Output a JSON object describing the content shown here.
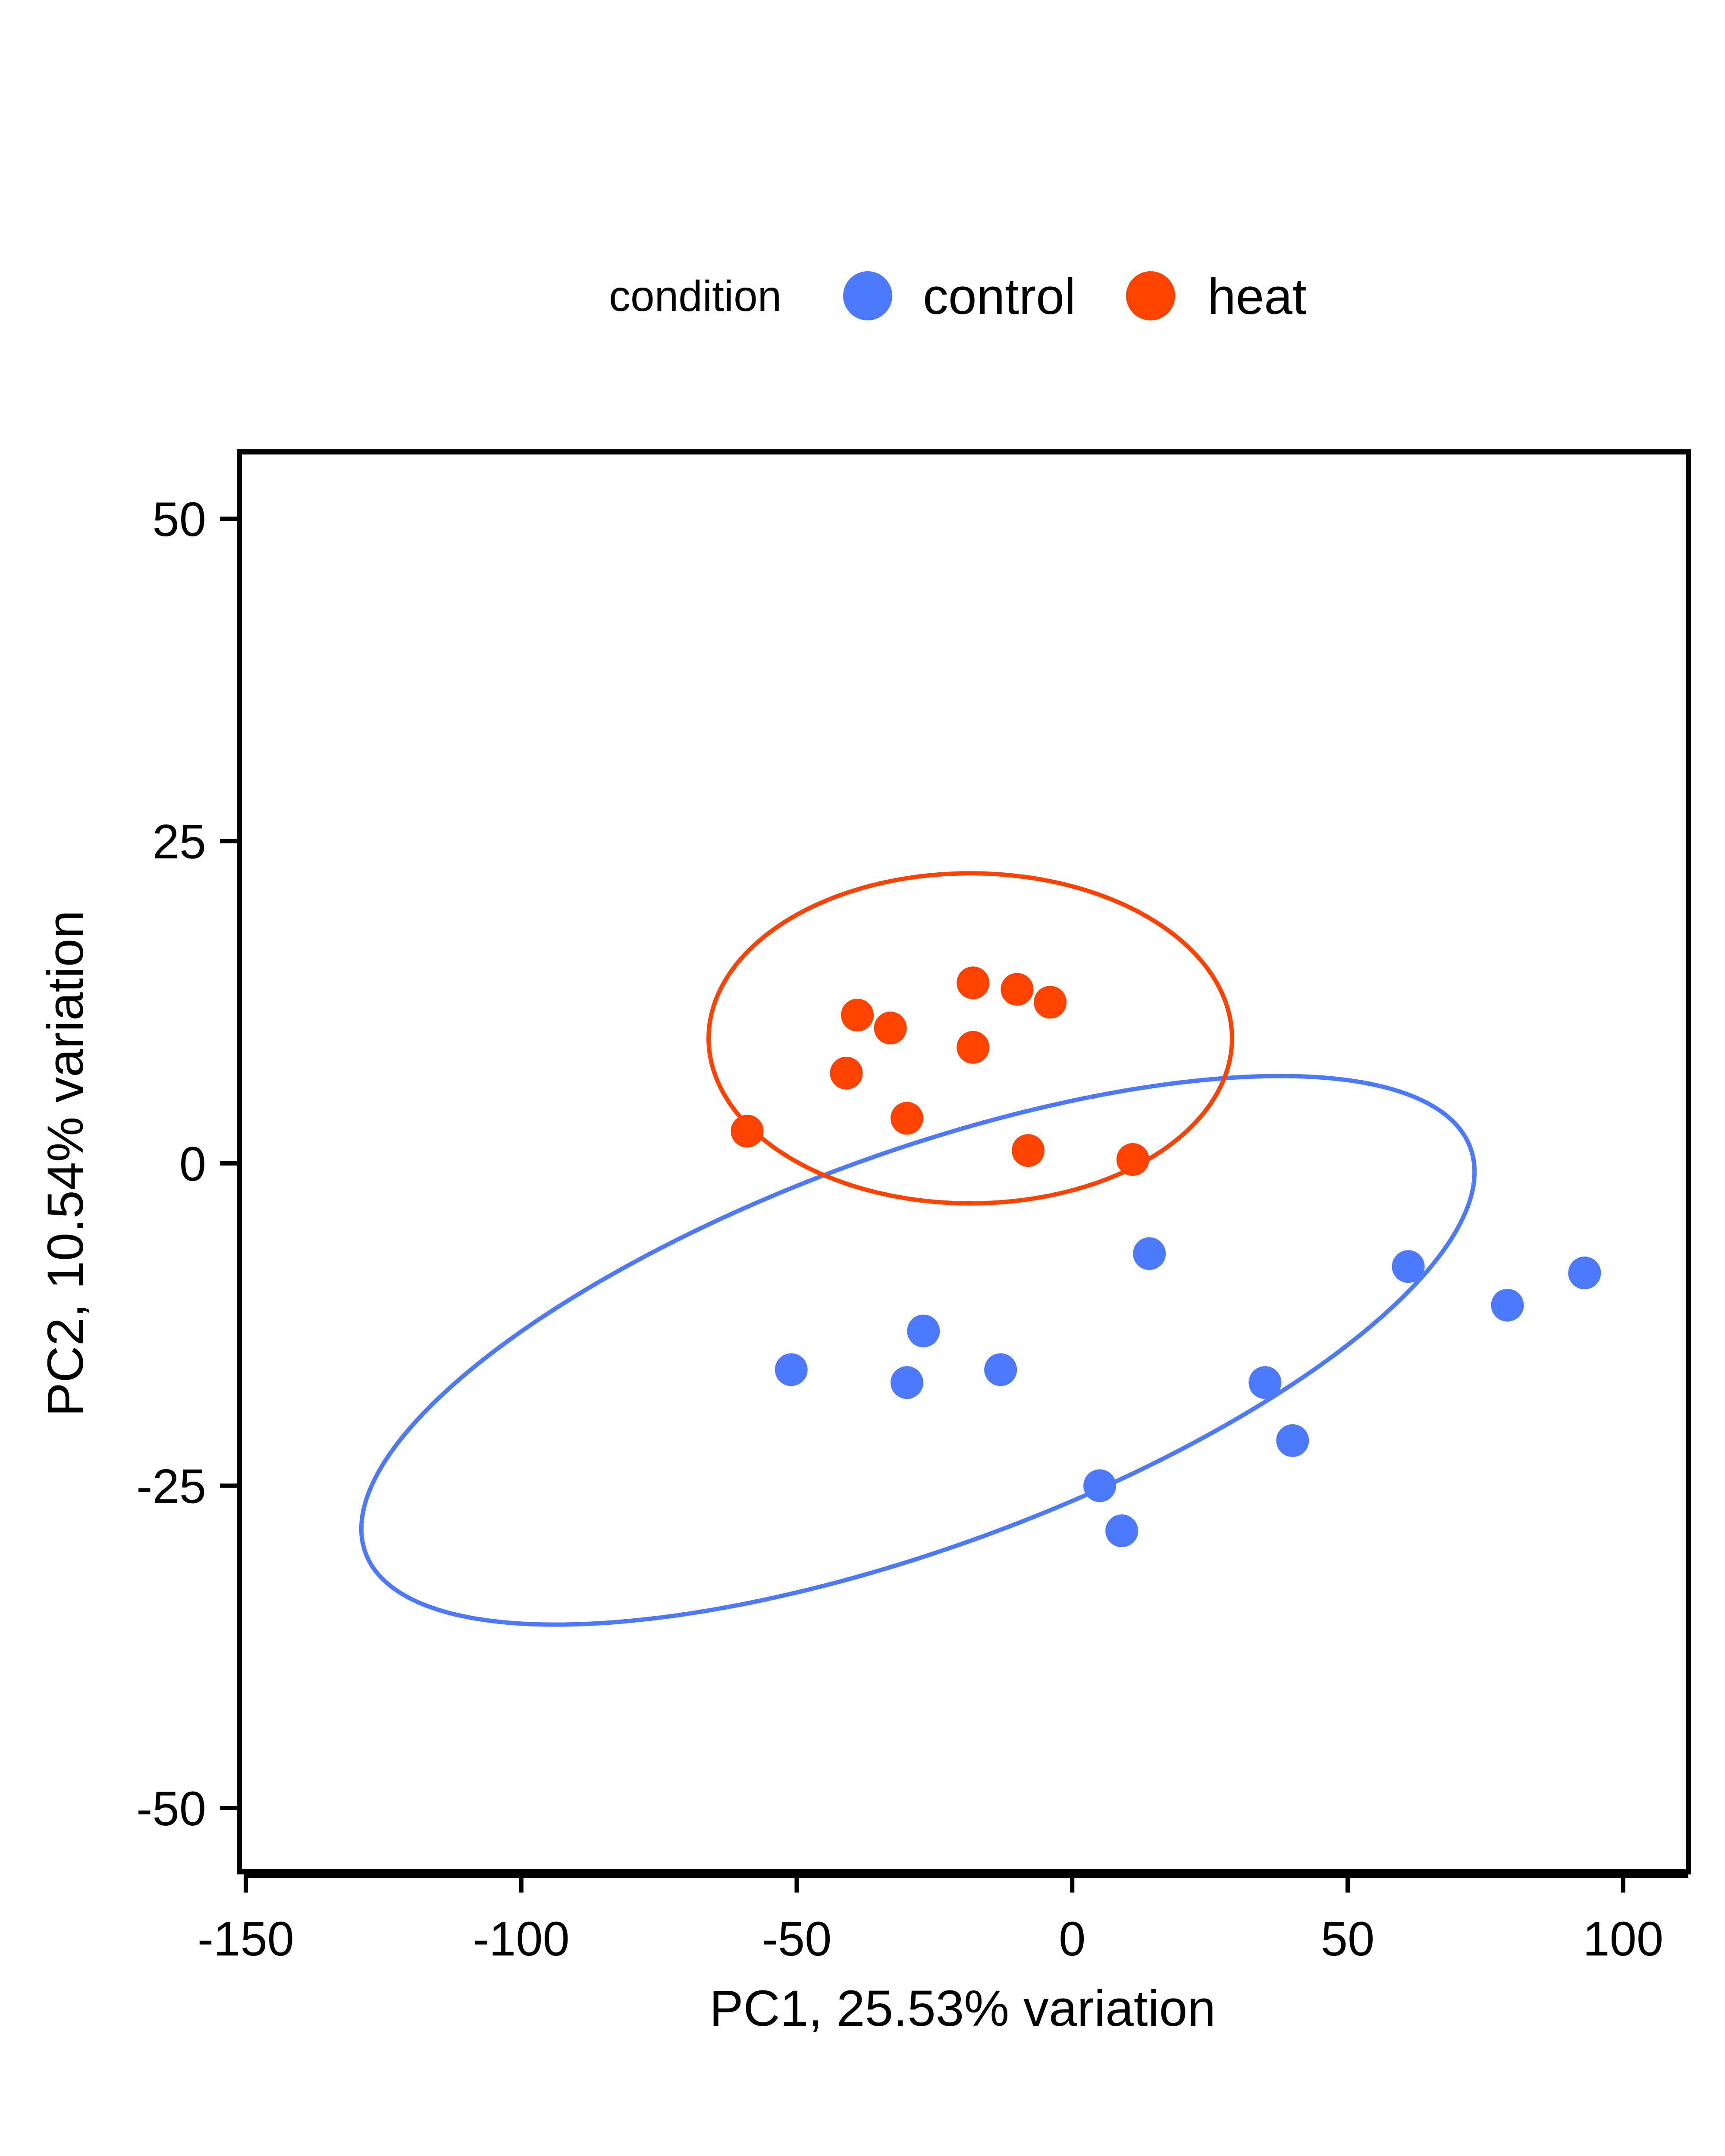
{
  "chart_data": {
    "type": "scatter",
    "title": "",
    "xlabel": "PC1, 25.53% variation",
    "ylabel": "PC2, 10.54% variation",
    "xlim": [
      -151,
      112
    ],
    "ylim": [
      -55,
      55
    ],
    "xticks": [
      -150,
      -100,
      -50,
      0,
      50,
      100
    ],
    "yticks": [
      50,
      25,
      0,
      -25,
      -50
    ],
    "grid": false,
    "legend": {
      "title": "condition",
      "position": "top",
      "entries": [
        {
          "name": "control",
          "color": "#4d79ff"
        },
        {
          "name": "heat",
          "color": "#ff4200"
        }
      ]
    },
    "series": [
      {
        "name": "control",
        "color": "#4d79ff",
        "points": [
          {
            "x": -51,
            "y": -16
          },
          {
            "x": -30,
            "y": -17
          },
          {
            "x": -27,
            "y": -13
          },
          {
            "x": -13,
            "y": -16
          },
          {
            "x": 5,
            "y": -25
          },
          {
            "x": 9,
            "y": -28.5
          },
          {
            "x": 14,
            "y": -7
          },
          {
            "x": 35,
            "y": -17
          },
          {
            "x": 40,
            "y": -21.5
          },
          {
            "x": 61,
            "y": -8
          },
          {
            "x": 79,
            "y": -11
          },
          {
            "x": 93,
            "y": -8.5
          }
        ],
        "ellipse": {
          "cx": -28,
          "cy": -14.5,
          "rx": 102,
          "ry": 16,
          "angle_deg": 8,
          "clipped_at_x": 93
        }
      },
      {
        "name": "heat",
        "color": "#ff4200",
        "points": [
          {
            "x": -59,
            "y": 2.5
          },
          {
            "x": -41,
            "y": 7
          },
          {
            "x": -39,
            "y": 11.5
          },
          {
            "x": -33,
            "y": 10.5
          },
          {
            "x": -30,
            "y": 3.5
          },
          {
            "x": -18,
            "y": 14
          },
          {
            "x": -18,
            "y": 9
          },
          {
            "x": -10,
            "y": 13.5
          },
          {
            "x": -8,
            "y": 1
          },
          {
            "x": -4,
            "y": 12.5
          },
          {
            "x": 11,
            "y": 0.3
          }
        ],
        "ellipse": {
          "cx": -18.5,
          "cy": 9.7,
          "rx": 47.5,
          "ry": 12.8,
          "angle_deg": 0
        }
      }
    ]
  }
}
